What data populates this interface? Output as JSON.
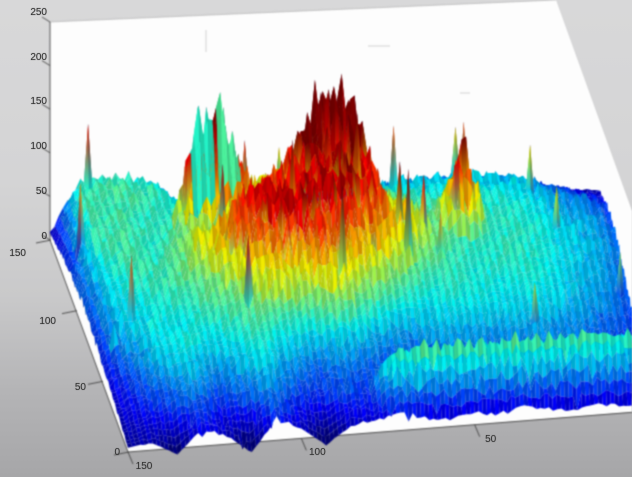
{
  "chart_data": {
    "type": "surface",
    "title": "",
    "colormap": "jet",
    "view": "matlab-3d",
    "x_axis": {
      "ticks": [
        150,
        100,
        50
      ],
      "range": [
        0,
        150
      ],
      "label": ""
    },
    "y_axis": {
      "ticks": [
        150,
        100,
        50,
        0
      ],
      "range": [
        0,
        150
      ],
      "label": ""
    },
    "z_axis": {
      "ticks": [
        250,
        200,
        150,
        100,
        50,
        0
      ],
      "range": [
        0,
        250
      ],
      "label": ""
    },
    "grid": {
      "rows": 13,
      "cols": 22,
      "rows_order": "front_to_back",
      "cols_order": "left_to_right",
      "heights": [
        [
          5,
          8,
          -8,
          20,
          10,
          -12,
          24,
          12,
          -10,
          10,
          15,
          22,
          12,
          8,
          14,
          10,
          16,
          12,
          8,
          12,
          9,
          6
        ],
        [
          10,
          20,
          30,
          38,
          25,
          35,
          45,
          30,
          25,
          35,
          28,
          73,
          74,
          74,
          72,
          73,
          74,
          73,
          72,
          73,
          71,
          68
        ],
        [
          14,
          30,
          45,
          55,
          40,
          50,
          60,
          45,
          35,
          40,
          35,
          30,
          32,
          36,
          34,
          32,
          36,
          38,
          35,
          33,
          30,
          24
        ],
        [
          18,
          40,
          55,
          65,
          58,
          62,
          70,
          60,
          55,
          60,
          55,
          45,
          42,
          46,
          50,
          48,
          45,
          48,
          44,
          40,
          34,
          26
        ],
        [
          22,
          50,
          62,
          58,
          66,
          70,
          78,
          85,
          80,
          90,
          85,
          70,
          62,
          58,
          62,
          60,
          58,
          60,
          55,
          48,
          42,
          30
        ],
        [
          25,
          55,
          60,
          65,
          72,
          80,
          95,
          110,
          105,
          115,
          108,
          95,
          80,
          68,
          66,
          64,
          62,
          64,
          60,
          52,
          46,
          34
        ],
        [
          28,
          58,
          66,
          70,
          78,
          92,
          118,
          135,
          150,
          132,
          125,
          118,
          100,
          82,
          70,
          66,
          65,
          66,
          62,
          54,
          48,
          36
        ],
        [
          30,
          62,
          70,
          66,
          82,
          100,
          130,
          145,
          128,
          148,
          150,
          138,
          115,
          92,
          75,
          68,
          66,
          67,
          63,
          55,
          50,
          38
        ],
        [
          28,
          68,
          72,
          64,
          76,
          74,
          80,
          110,
          138,
          125,
          142,
          152,
          98,
          84,
          72,
          160,
          66,
          65,
          62,
          53,
          48,
          36
        ],
        [
          24,
          70,
          71,
          68,
          66,
          185,
          195,
          100,
          110,
          165,
          220,
          185,
          82,
          72,
          68,
          67,
          65,
          64,
          60,
          50,
          45,
          32
        ],
        [
          20,
          68,
          70,
          69,
          64,
          62,
          70,
          78,
          85,
          80,
          78,
          72,
          66,
          64,
          63,
          64,
          62,
          60,
          55,
          45,
          40,
          28
        ],
        [
          15,
          70,
          72,
          71,
          68,
          48,
          52,
          58,
          60,
          55,
          52,
          50,
          52,
          54,
          55,
          56,
          54,
          50,
          45,
          35,
          26,
          16
        ],
        [
          8,
          62,
          66,
          64,
          55,
          15,
          20,
          25,
          28,
          24,
          20,
          22,
          25,
          28,
          30,
          32,
          30,
          26,
          22,
          16,
          10,
          6
        ]
      ]
    },
    "color_overrides": [
      {
        "row": 9,
        "col": 5,
        "t": 0.42
      },
      {
        "row": 9,
        "col": 6,
        "t": 0.46
      }
    ],
    "colors": {
      "figure_background": "#d2d2d4",
      "axes_background": "#fdfdfd",
      "axis_line": "#3f3f3f",
      "tick_label": "#333333"
    }
  }
}
